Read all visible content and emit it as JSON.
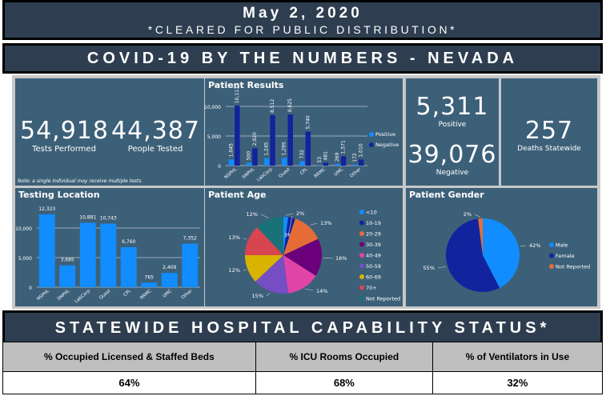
{
  "header": {
    "date": "May 2, 2020",
    "subtitle": "*CLEARED FOR PUBLIC DISTRIBUTION*",
    "title": "COVID-19 BY THE NUMBERS - NEVADA"
  },
  "kpis": {
    "tests_performed": {
      "value": "54,918",
      "label": "Tests Performed"
    },
    "people_tested": {
      "value": "44,387",
      "label": "People Tested"
    },
    "note": "Note: a single individual may receive multiple tests.",
    "positive": {
      "value": "5,311",
      "label": "Positive"
    },
    "negative": {
      "value": "39,076",
      "label": "Negative"
    },
    "deaths": {
      "value": "257",
      "label": "Deaths Statewide"
    }
  },
  "colors": {
    "positive": "#118dff",
    "negative": "#12239e",
    "bar": "#118dff",
    "card_bg": "#3d6079",
    "header_bg": "#2e3e50"
  },
  "chart_data": [
    {
      "id": "patient_results",
      "type": "bar",
      "title": "Patient Results",
      "categories": [
        "NSPHL",
        "SNPHL",
        "LabCorp",
        "Quest",
        "CPL",
        "RRMC",
        "UMC",
        "Other"
      ],
      "series": [
        {
          "name": "Positive",
          "color": "#118dff",
          "values": [
            1045,
            500,
            1245,
            1295,
            732,
            53,
            269,
            172
          ],
          "labels": [
            "1,045",
            "500",
            "1,245",
            "1,295",
            "732",
            "53",
            "269",
            "172"
          ]
        },
        {
          "name": "Negative",
          "color": "#12239e",
          "values": [
            10117,
            2920,
            8512,
            8625,
            5740,
            481,
            1571,
            1010
          ],
          "labels": [
            "10,117",
            "2,920",
            "8,512",
            "8,625",
            "5,740",
            "481",
            "1,571",
            "1,010"
          ]
        }
      ],
      "yticks": [
        0,
        5000,
        10000
      ],
      "ytick_labels": [
        "0",
        "5,000",
        "10,000"
      ],
      "ylim": [
        0,
        11000
      ],
      "legend": "right",
      "grid": true
    },
    {
      "id": "testing_location",
      "type": "bar",
      "title": "Testing Location",
      "categories": [
        "NSPHL",
        "SNPHL",
        "LabCorp",
        "Quest",
        "CPL",
        "RRMC",
        "UMC",
        "Other"
      ],
      "values": [
        12323,
        3685,
        10881,
        10743,
        6760,
        765,
        2409,
        7352
      ],
      "labels": [
        "12,323",
        "3,685",
        "10,881",
        "10,743",
        "6,760",
        "765",
        "2,409",
        "7,352"
      ],
      "yticks": [
        0,
        5000,
        10000
      ],
      "ytick_labels": [
        "0",
        "5,000",
        "10,000"
      ],
      "ylim": [
        0,
        13500
      ],
      "grid": true
    },
    {
      "id": "patient_age",
      "type": "pie",
      "title": "Patient Age",
      "categories": [
        "<10",
        "10-19",
        "20-29",
        "30-39",
        "40-49",
        "50-59",
        "60-69",
        "70+",
        "Not Reported"
      ],
      "values": [
        2,
        3,
        13,
        16,
        14,
        15,
        12,
        13,
        12
      ],
      "labels": [
        "2%",
        "3%",
        "13%",
        "16%",
        "14%",
        "15%",
        "12%",
        "13%",
        "12%"
      ],
      "colors": [
        "#118dff",
        "#12239e",
        "#e66c37",
        "#6b007b",
        "#e044a7",
        "#744ec2",
        "#d9b300",
        "#d64550",
        "#197278"
      ],
      "legend": "right"
    },
    {
      "id": "patient_gender",
      "type": "pie",
      "title": "Patient Gender",
      "categories": [
        "Male",
        "Female",
        "Not Reported"
      ],
      "values": [
        42,
        55,
        2
      ],
      "labels": [
        "42%",
        "55%",
        "2%"
      ],
      "colors": [
        "#118dff",
        "#12239e",
        "#e66c37"
      ],
      "legend": "right"
    }
  ],
  "hospital": {
    "title": "STATEWIDE HOSPITAL CAPABILITY STATUS*",
    "headers": [
      "% Occupied Licensed & Staffed Beds",
      "% ICU Rooms Occupied",
      "% of Ventilators in Use"
    ],
    "values": [
      "64%",
      "68%",
      "32%"
    ]
  }
}
